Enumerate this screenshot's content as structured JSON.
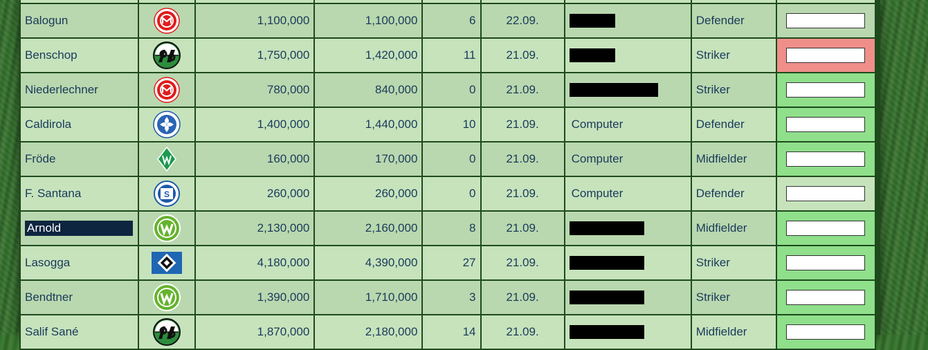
{
  "rows": [
    {
      "name": "",
      "crest": "",
      "mv_a": "",
      "mv_b": "",
      "points": "",
      "date": "",
      "owner": "",
      "redact": 0,
      "position": "",
      "bid_state": "neutral"
    },
    {
      "name": "Balogun",
      "crest": "mainz",
      "mv_a": "1,100,000",
      "mv_b": "1,100,000",
      "points": "6",
      "date": "22.09.",
      "owner": "",
      "redact": 66,
      "position": "Defender",
      "bid_state": "neutral"
    },
    {
      "name": "Benschop",
      "crest": "hannover",
      "mv_a": "1,750,000",
      "mv_b": "1,420,000",
      "points": "11",
      "date": "21.09.",
      "owner": "",
      "redact": 66,
      "position": "Striker",
      "bid_state": "red"
    },
    {
      "name": "Niederlechner",
      "crest": "mainz",
      "mv_a": "780,000",
      "mv_b": "840,000",
      "points": "0",
      "date": "21.09.",
      "owner": "",
      "redact": 128,
      "position": "Striker",
      "bid_state": "green"
    },
    {
      "name": "Caldirola",
      "crest": "darmstadt",
      "mv_a": "1,400,000",
      "mv_b": "1,440,000",
      "points": "10",
      "date": "21.09.",
      "owner": "Computer",
      "redact": 0,
      "position": "Defender",
      "bid_state": "green"
    },
    {
      "name": "Fröde",
      "crest": "bremen",
      "mv_a": "160,000",
      "mv_b": "170,000",
      "points": "0",
      "date": "21.09.",
      "owner": "Computer",
      "redact": 0,
      "position": "Midfielder",
      "bid_state": "green"
    },
    {
      "name": "F. Santana",
      "crest": "schalke",
      "mv_a": "260,000",
      "mv_b": "260,000",
      "points": "0",
      "date": "21.09.",
      "owner": "Computer",
      "redact": 0,
      "position": "Defender",
      "bid_state": "neutral"
    },
    {
      "name": "Arnold",
      "crest": "wolfsburg",
      "mv_a": "2,130,000",
      "mv_b": "2,160,000",
      "points": "8",
      "date": "21.09.",
      "owner": "",
      "redact": 108,
      "position": "Midfielder",
      "bid_state": "green",
      "selected": true
    },
    {
      "name": "Lasogga",
      "crest": "hamburg",
      "mv_a": "4,180,000",
      "mv_b": "4,390,000",
      "points": "27",
      "date": "21.09.",
      "owner": "",
      "redact": 108,
      "position": "Striker",
      "bid_state": "green"
    },
    {
      "name": "Bendtner",
      "crest": "wolfsburg",
      "mv_a": "1,390,000",
      "mv_b": "1,710,000",
      "points": "3",
      "date": "21.09.",
      "owner": "",
      "redact": 108,
      "position": "Striker",
      "bid_state": "green"
    },
    {
      "name": "Salif Sané",
      "crest": "hannover",
      "mv_a": "1,870,000",
      "mv_b": "2,180,000",
      "points": "14",
      "date": "21.09.",
      "owner": "",
      "redact": 108,
      "position": "Midfielder",
      "bid_state": "green"
    }
  ],
  "colors": {
    "bid_green": "#8fdf8b",
    "bid_red": "#f08f8a",
    "row_light": "#c6e3bc",
    "row_dark": "#b9d8af",
    "border": "#1e4a1e",
    "selection": "#0e2540"
  }
}
